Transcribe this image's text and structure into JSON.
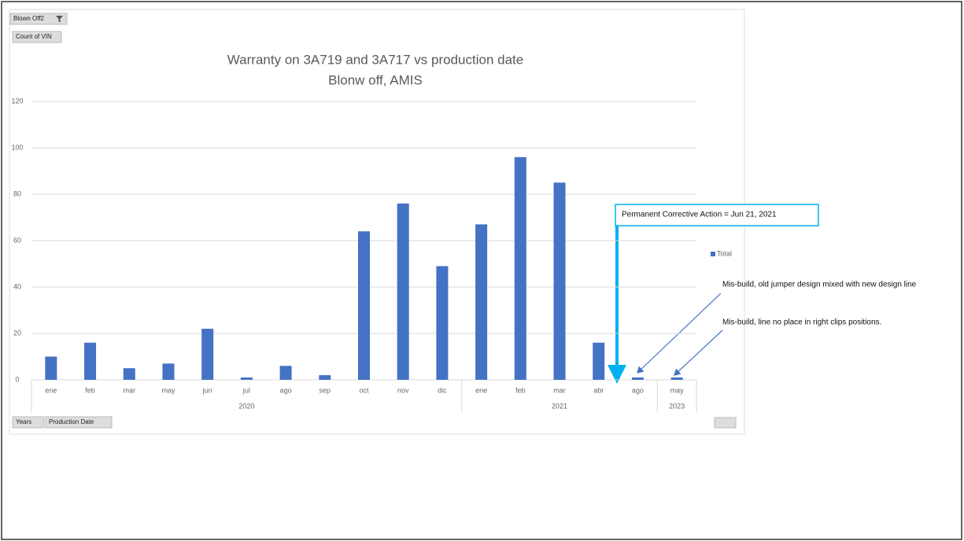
{
  "chart_data": {
    "type": "bar",
    "title": "Warranty on 3A719 and 3A717 vs production date",
    "subtitle": "Blonw off, AMIS",
    "filter_button": "Blown Off2",
    "value_button": "Count of VIN",
    "axis_buttons": [
      "Years",
      "Production Date"
    ],
    "category_groups": [
      {
        "label": "2020",
        "categories": [
          "ene",
          "feb",
          "mar",
          "may",
          "jun",
          "jul",
          "ago",
          "sep",
          "oct",
          "nov",
          "dic"
        ]
      },
      {
        "label": "2021",
        "categories": [
          "ene",
          "feb",
          "mar",
          "abr",
          "ago"
        ]
      },
      {
        "label": "2023",
        "categories": [
          "may"
        ]
      }
    ],
    "series": [
      {
        "name": "Total",
        "color": "#4472c4",
        "values": [
          10,
          16,
          5,
          7,
          22,
          1,
          6,
          2,
          64,
          76,
          49,
          67,
          96,
          85,
          16,
          1,
          1
        ]
      }
    ],
    "ylim": [
      0,
      120
    ],
    "yticks": [
      0,
      20,
      40,
      60,
      80,
      100,
      120
    ],
    "grid": true,
    "legend": "right",
    "annotations": [
      "Permanent Corrective Action = Jun 21, 2021",
      "Mis-build, old jumper design mixed with new design line",
      "Mis-build, line no place in right clips positions."
    ]
  }
}
